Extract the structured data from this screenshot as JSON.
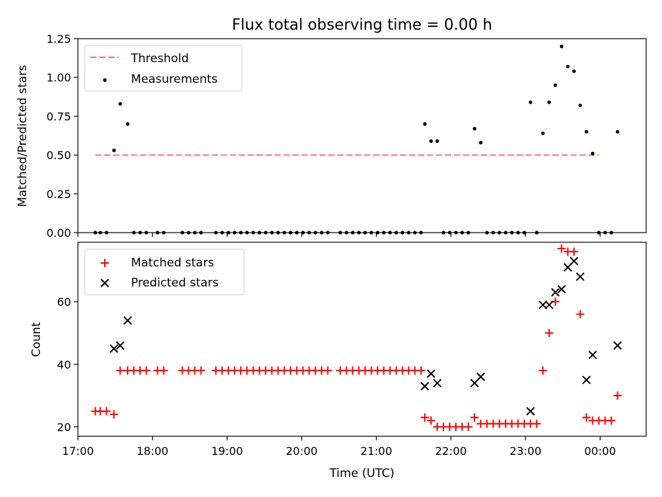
{
  "title": "Flux total observing time = 0.00 h",
  "chart_data": [
    {
      "type": "scatter",
      "ylabel": "Matched/Predicted stars",
      "xlim": [
        "17:00",
        "00:37"
      ],
      "ylim": [
        0,
        1.25
      ],
      "yticks": [
        0.0,
        0.25,
        0.5,
        0.75,
        1.0,
        1.25
      ],
      "ytick_labels": [
        "0.00",
        "0.25",
        "0.50",
        "0.75",
        "1.00",
        "1.25"
      ],
      "grid": false,
      "legend_placement": "top-left",
      "threshold": {
        "name": "Threshold",
        "value": 0.5,
        "x_range": [
          "17:14",
          "23:59"
        ],
        "color": "#ff7070",
        "style": "dashed"
      },
      "series": [
        {
          "name": "Measurements",
          "marker": "dot",
          "color": "#000000",
          "points": [
            [
              "17:14",
              0
            ],
            [
              "17:18",
              0
            ],
            [
              "17:23",
              0
            ],
            [
              "17:29",
              0.53
            ],
            [
              "17:34",
              0.83
            ],
            [
              "17:40",
              0.7
            ],
            [
              "17:45",
              0
            ],
            [
              "17:50",
              0
            ],
            [
              "17:55",
              0
            ],
            [
              "18:04",
              0
            ],
            [
              "18:09",
              0
            ],
            [
              "18:24",
              0
            ],
            [
              "18:29",
              0
            ],
            [
              "18:34",
              0
            ],
            [
              "18:39",
              0
            ],
            [
              "18:51",
              0
            ],
            [
              "18:56",
              0
            ],
            [
              "19:01",
              0
            ],
            [
              "19:06",
              0
            ],
            [
              "19:11",
              0
            ],
            [
              "19:16",
              0
            ],
            [
              "19:21",
              0
            ],
            [
              "19:26",
              0
            ],
            [
              "19:31",
              0
            ],
            [
              "19:36",
              0
            ],
            [
              "19:41",
              0
            ],
            [
              "19:46",
              0
            ],
            [
              "19:51",
              0
            ],
            [
              "19:56",
              0
            ],
            [
              "20:01",
              0
            ],
            [
              "20:06",
              0
            ],
            [
              "20:11",
              0
            ],
            [
              "20:16",
              0
            ],
            [
              "20:21",
              0
            ],
            [
              "20:31",
              0
            ],
            [
              "20:36",
              0
            ],
            [
              "20:41",
              0
            ],
            [
              "20:46",
              0
            ],
            [
              "20:51",
              0
            ],
            [
              "20:56",
              0
            ],
            [
              "21:01",
              0
            ],
            [
              "21:06",
              0
            ],
            [
              "21:11",
              0
            ],
            [
              "21:16",
              0
            ],
            [
              "21:21",
              0
            ],
            [
              "21:26",
              0
            ],
            [
              "21:31",
              0
            ],
            [
              "21:36",
              0
            ],
            [
              "21:39",
              0.7
            ],
            [
              "21:44",
              0.59
            ],
            [
              "21:49",
              0.59
            ],
            [
              "21:54",
              0
            ],
            [
              "21:59",
              0
            ],
            [
              "22:04",
              0
            ],
            [
              "22:09",
              0
            ],
            [
              "22:14",
              0
            ],
            [
              "22:19",
              0.67
            ],
            [
              "22:24",
              0.58
            ],
            [
              "22:29",
              0
            ],
            [
              "22:34",
              0
            ],
            [
              "22:39",
              0
            ],
            [
              "22:44",
              0
            ],
            [
              "22:49",
              0
            ],
            [
              "22:54",
              0
            ],
            [
              "22:59",
              0
            ],
            [
              "23:04",
              0.84
            ],
            [
              "23:09",
              0
            ],
            [
              "23:14",
              0.64
            ],
            [
              "23:19",
              0.84
            ],
            [
              "23:24",
              0.95
            ],
            [
              "23:29",
              1.2
            ],
            [
              "23:34",
              1.07
            ],
            [
              "23:39",
              1.04
            ],
            [
              "23:44",
              0.82
            ],
            [
              "23:49",
              0.65
            ],
            [
              "23:54",
              0.51
            ],
            [
              "23:59",
              0
            ],
            [
              "00:04",
              0
            ],
            [
              "00:09",
              0
            ],
            [
              "00:14",
              0.65
            ]
          ]
        }
      ]
    },
    {
      "type": "scatter",
      "xlabel": "Time (UTC)",
      "ylabel": "Count",
      "xlim": [
        "17:00",
        "00:37"
      ],
      "ylim": [
        17,
        79
      ],
      "xticks": [
        "17:00",
        "18:00",
        "19:00",
        "20:00",
        "21:00",
        "22:00",
        "23:00",
        "00:00"
      ],
      "yticks": [
        20,
        40,
        60
      ],
      "grid": false,
      "legend_placement": "top-left",
      "series": [
        {
          "name": "Matched stars",
          "marker": "plus",
          "color": "#ff0000",
          "points": [
            [
              "17:14",
              25
            ],
            [
              "17:18",
              25
            ],
            [
              "17:23",
              25
            ],
            [
              "17:29",
              24
            ],
            [
              "17:34",
              38
            ],
            [
              "17:40",
              38
            ],
            [
              "17:45",
              38
            ],
            [
              "17:50",
              38
            ],
            [
              "17:55",
              38
            ],
            [
              "18:04",
              38
            ],
            [
              "18:09",
              38
            ],
            [
              "18:24",
              38
            ],
            [
              "18:29",
              38
            ],
            [
              "18:34",
              38
            ],
            [
              "18:39",
              38
            ],
            [
              "18:51",
              38
            ],
            [
              "18:56",
              38
            ],
            [
              "19:01",
              38
            ],
            [
              "19:06",
              38
            ],
            [
              "19:11",
              38
            ],
            [
              "19:16",
              38
            ],
            [
              "19:21",
              38
            ],
            [
              "19:26",
              38
            ],
            [
              "19:31",
              38
            ],
            [
              "19:36",
              38
            ],
            [
              "19:41",
              38
            ],
            [
              "19:46",
              38
            ],
            [
              "19:51",
              38
            ],
            [
              "19:56",
              38
            ],
            [
              "20:01",
              38
            ],
            [
              "20:06",
              38
            ],
            [
              "20:11",
              38
            ],
            [
              "20:16",
              38
            ],
            [
              "20:21",
              38
            ],
            [
              "20:31",
              38
            ],
            [
              "20:36",
              38
            ],
            [
              "20:41",
              38
            ],
            [
              "20:46",
              38
            ],
            [
              "20:51",
              38
            ],
            [
              "20:56",
              38
            ],
            [
              "21:01",
              38
            ],
            [
              "21:06",
              38
            ],
            [
              "21:11",
              38
            ],
            [
              "21:16",
              38
            ],
            [
              "21:21",
              38
            ],
            [
              "21:26",
              38
            ],
            [
              "21:31",
              38
            ],
            [
              "21:36",
              38
            ],
            [
              "21:39",
              23
            ],
            [
              "21:44",
              22
            ],
            [
              "21:49",
              20
            ],
            [
              "21:54",
              20
            ],
            [
              "21:59",
              20
            ],
            [
              "22:04",
              20
            ],
            [
              "22:09",
              20
            ],
            [
              "22:14",
              20
            ],
            [
              "22:19",
              23
            ],
            [
              "22:24",
              21
            ],
            [
              "22:29",
              21
            ],
            [
              "22:34",
              21
            ],
            [
              "22:39",
              21
            ],
            [
              "22:44",
              21
            ],
            [
              "22:49",
              21
            ],
            [
              "22:54",
              21
            ],
            [
              "22:59",
              21
            ],
            [
              "23:04",
              21
            ],
            [
              "23:09",
              21
            ],
            [
              "23:14",
              38
            ],
            [
              "23:19",
              50
            ],
            [
              "23:24",
              60
            ],
            [
              "23:29",
              77
            ],
            [
              "23:34",
              76
            ],
            [
              "23:39",
              76
            ],
            [
              "23:44",
              56
            ],
            [
              "23:49",
              23
            ],
            [
              "23:54",
              22
            ],
            [
              "23:59",
              22
            ],
            [
              "00:04",
              22
            ],
            [
              "00:09",
              22
            ],
            [
              "00:14",
              30
            ]
          ]
        },
        {
          "name": "Predicted stars",
          "marker": "x",
          "color": "#000000",
          "points": [
            [
              "17:29",
              45
            ],
            [
              "17:34",
              46
            ],
            [
              "17:40",
              54
            ],
            [
              "21:39",
              33
            ],
            [
              "21:44",
              37
            ],
            [
              "21:49",
              34
            ],
            [
              "22:19",
              34
            ],
            [
              "22:24",
              36
            ],
            [
              "23:04",
              25
            ],
            [
              "23:14",
              59
            ],
            [
              "23:19",
              59
            ],
            [
              "23:24",
              63
            ],
            [
              "23:29",
              64
            ],
            [
              "23:34",
              71
            ],
            [
              "23:39",
              73
            ],
            [
              "23:44",
              68
            ],
            [
              "23:49",
              35
            ],
            [
              "23:54",
              43
            ],
            [
              "00:14",
              46
            ]
          ]
        }
      ]
    }
  ]
}
